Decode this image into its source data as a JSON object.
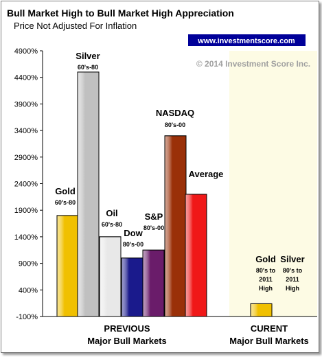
{
  "chart_data": {
    "type": "bar",
    "title": "Bull Market High to Bull Market High Appreciation",
    "subtitle": "Price Not Adjusted For Inflation",
    "website": "www.investmentscore.com",
    "copyright": "© 2014 Investment Score Inc.",
    "y_ticks": [
      "4900%",
      "4400%",
      "3900%",
      "3400%",
      "2900%",
      "2400%",
      "1900%",
      "1400%",
      "900%",
      "400%",
      "-100%"
    ],
    "ylim": [
      -100,
      4900
    ],
    "categories": [
      {
        "name": "Gold",
        "period": "60's-80",
        "value": 1800,
        "color": "#f0c000",
        "group": "previous"
      },
      {
        "name": "Silver",
        "period": "60's-80",
        "value": 4500,
        "color": "#c0c0c0",
        "group": "previous"
      },
      {
        "name": "Oil",
        "period": "60's-80",
        "value": 1400,
        "color": "#e8e8e8",
        "group": "previous"
      },
      {
        "name": "Dow",
        "period": "80's-00",
        "value": 1000,
        "color": "#1a1a8c",
        "group": "previous"
      },
      {
        "name": "S&P",
        "period": "80's-00",
        "value": 1150,
        "color": "#6a1c6a",
        "group": "previous"
      },
      {
        "name": "NASDAQ",
        "period": "80's-00",
        "value": 3300,
        "color": "#9a3008",
        "group": "previous"
      },
      {
        "name": "Average",
        "period": "",
        "value": 2200,
        "color": "#f01818",
        "group": "previous"
      },
      {
        "name": "Gold",
        "period": "80's to 2011 High",
        "value": 140,
        "color": "#f0c000",
        "group": "current"
      },
      {
        "name": "Silver",
        "period": "80's to 2011 High",
        "value": -100,
        "color": "#c0c0c0",
        "group": "current"
      }
    ],
    "x_groups": [
      {
        "line1": "PREVIOUS",
        "line2": "Major Bull Markets"
      },
      {
        "line1": "CURENT",
        "line2": "Major Bull Markets"
      }
    ],
    "colors": {
      "current_bg": "#fdfbe4",
      "link_bg": "#000099",
      "link_fg": "#ffffff"
    }
  }
}
